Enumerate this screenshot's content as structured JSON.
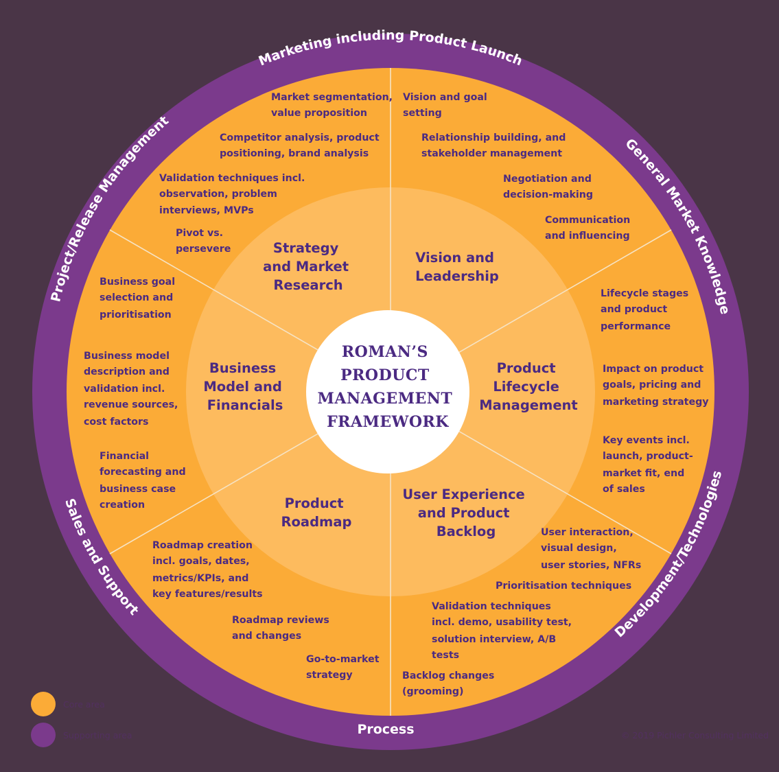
{
  "center": {
    "lines": [
      "ROMAN’S",
      "PRODUCT",
      "MANAGEMENT",
      "FRAMEWORK"
    ]
  },
  "core_areas": [
    {
      "id": "strategy",
      "lines": [
        "Strategy",
        "and Market",
        "Research"
      ]
    },
    {
      "id": "vision",
      "lines": [
        "Vision and",
        "Leadership"
      ]
    },
    {
      "id": "lifecycle",
      "lines": [
        "Product",
        "Lifecycle",
        "Management"
      ]
    },
    {
      "id": "ux",
      "lines": [
        "User Experience",
        "and Product",
        "Backlog"
      ]
    },
    {
      "id": "roadmap",
      "lines": [
        "Product",
        "Roadmap"
      ]
    },
    {
      "id": "business",
      "lines": [
        "Business",
        "Model and",
        "Financials"
      ]
    }
  ],
  "details": {
    "strategy": [
      [
        "Market segmentation,",
        "value proposition"
      ],
      [
        "Competitor analysis, product",
        "positioning, brand analysis"
      ],
      [
        "Validation techniques incl.",
        "observation, problem",
        "interviews, MVPs"
      ],
      [
        "Pivot vs.",
        "persevere"
      ]
    ],
    "vision": [
      [
        "Vision and goal",
        "setting"
      ],
      [
        "Relationship building, and",
        "stakeholder management"
      ],
      [
        "Negotiation and",
        "decision-making"
      ],
      [
        "Communication",
        "and influencing"
      ]
    ],
    "lifecycle": [
      [
        "Lifecycle stages",
        "and product",
        "performance"
      ],
      [
        "Impact on product",
        "goals, pricing and",
        "marketing strategy"
      ],
      [
        "Key events incl.",
        "launch, product-",
        "market fit, end",
        "of sales"
      ]
    ],
    "ux": [
      [
        "User interaction,",
        "visual design,",
        "user stories, NFRs"
      ],
      [
        "Prioritisation techniques"
      ],
      [
        "Validation techniques",
        "incl. demo, usability test,",
        "solution interview, A/B",
        "tests"
      ],
      [
        "Backlog changes",
        "(grooming)"
      ]
    ],
    "roadmap": [
      [
        "Roadmap creation",
        "incl. goals, dates,",
        "metrics/KPIs, and",
        "key features/results"
      ],
      [
        "Roadmap reviews",
        "and changes"
      ],
      [
        "Go-to-market",
        "strategy"
      ]
    ],
    "business": [
      [
        "Business goal",
        "selection and",
        "prioritisation"
      ],
      [
        "Business model",
        "description and",
        "validation incl.",
        "revenue sources,",
        "cost factors"
      ],
      [
        "Financial",
        "forecasting and",
        "business case",
        "creation"
      ]
    ]
  },
  "supporting_areas": {
    "top": "Marketing including Product Launch",
    "top_left": "Project/Release Management",
    "top_right": "General Market Knowledge",
    "bottom_left": "Sales and Support",
    "bottom_right": "Development/Technologies",
    "bottom": "Process"
  },
  "legend": {
    "core_label": "Core area",
    "supporting_label": "Supporting area"
  },
  "copyright": "© 2019 Pichler Consulting Limited",
  "colors": {
    "background": "#4a3547",
    "supporting": "#7b3a8c",
    "core": "#fbab37",
    "inner_ring": "#fdbb5e",
    "center": "#ffffff",
    "text": "#4b2a82",
    "divider": "#f6e3c4"
  }
}
